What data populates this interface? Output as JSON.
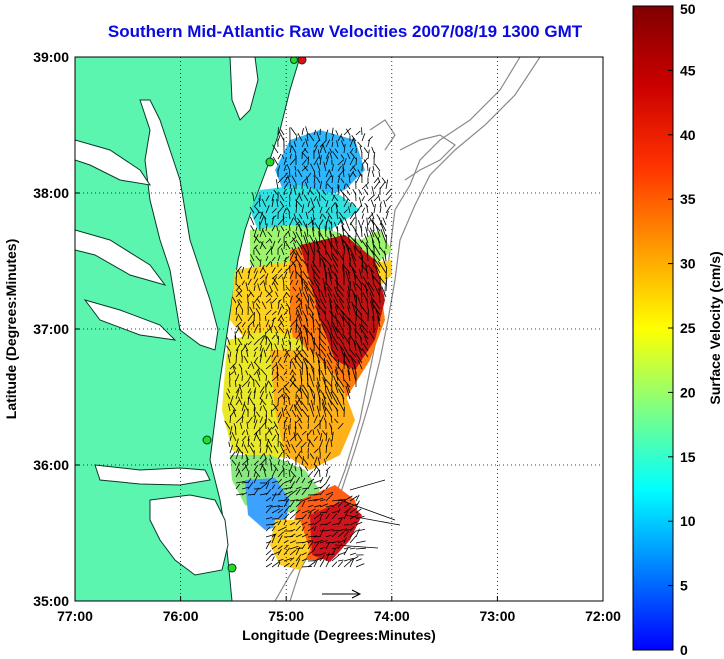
{
  "title": "Southern Mid-Atlantic Raw Velocities 2007/08/19 1300 GMT",
  "x_axis": {
    "label": "Longitude (Degrees:Minutes)",
    "ticks": [
      "77:00",
      "76:00",
      "75:00",
      "74:00",
      "73:00",
      "72:00"
    ]
  },
  "y_axis": {
    "label": "Latitude (Degrees:Minutes)",
    "ticks": [
      "39:00",
      "38:00",
      "37:00",
      "36:00",
      "35:00"
    ]
  },
  "colorbar": {
    "label": "Surface Velocity (cm/s)",
    "ticks": [
      "50",
      "45",
      "40",
      "35",
      "30",
      "25",
      "20",
      "15",
      "10",
      "5",
      "0"
    ],
    "colormap": "jet",
    "range": [
      0,
      50
    ]
  },
  "colors": {
    "land": "#5cf5b0",
    "water": "#ffffff",
    "title": "#0a0adf",
    "coast": "#0a3a2a",
    "bathymetry": "#8a8a8a",
    "station_green": "#22dd22",
    "station_red": "#dd1111"
  },
  "map": {
    "lon_range": [
      -77,
      -72
    ],
    "lat_range": [
      35,
      39
    ],
    "grid": "dotted"
  }
}
